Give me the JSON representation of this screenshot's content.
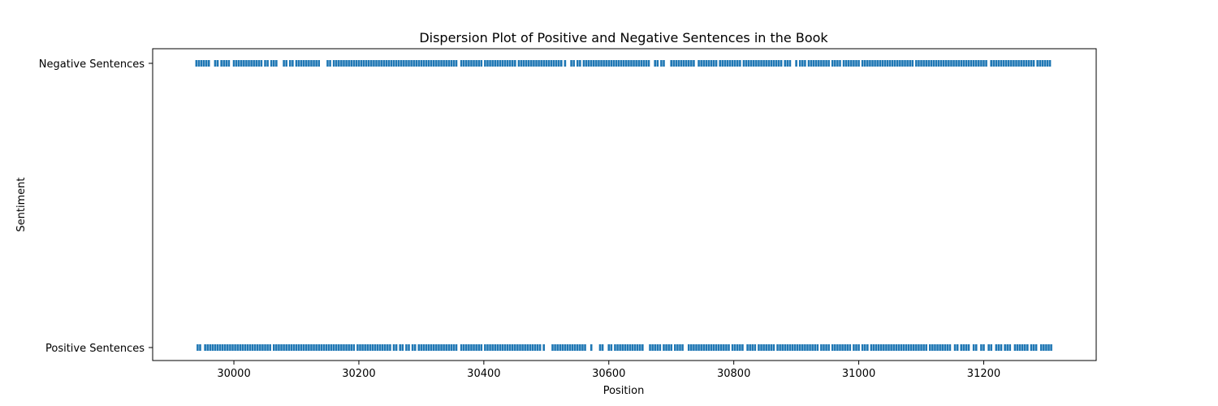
{
  "chart_data": {
    "type": "scatter",
    "title": "Dispersion Plot of Positive and Negative Sentences in the Book",
    "xlabel": "Position",
    "ylabel": "Sentiment",
    "xlim": [
      29870,
      31380
    ],
    "x_ticks": [
      30000,
      30200,
      30400,
      30600,
      30800,
      31000,
      31200
    ],
    "categories": [
      "Positive Sentences",
      "Negative Sentences"
    ],
    "marker": "|",
    "color": "#1f77b4",
    "grid": false,
    "series": [
      {
        "name": "Negative Sentences",
        "x": [
          29940,
          29944,
          29948,
          29952,
          29956,
          29960,
          29970,
          29974,
          29980,
          29984,
          29988,
          29992,
          30000,
          30004,
          30008,
          30012,
          30016,
          30020,
          30024,
          30028,
          30032,
          30036,
          30040,
          30044,
          30050,
          30054,
          30060,
          30064,
          30068,
          30080,
          30084,
          30090,
          30094,
          30100,
          30104,
          30108,
          30112,
          30116,
          30120,
          30124,
          30128,
          30132,
          30136,
          30150,
          30154,
          30160,
          30164,
          30168,
          30172,
          30176,
          30180,
          30184,
          30188,
          30192,
          30196,
          30200,
          30204,
          30208,
          30212,
          30216,
          30220,
          30224,
          30228,
          30232,
          30236,
          30240,
          30244,
          30248,
          30252,
          30256,
          30260,
          30264,
          30268,
          30272,
          30276,
          30280,
          30284,
          30288,
          30292,
          30296,
          30300,
          30304,
          30308,
          30312,
          30316,
          30320,
          30324,
          30328,
          30332,
          30336,
          30340,
          30344,
          30348,
          30352,
          30356,
          30364,
          30368,
          30372,
          30376,
          30380,
          30384,
          30388,
          30392,
          30396,
          30402,
          30406,
          30410,
          30414,
          30418,
          30422,
          30426,
          30430,
          30434,
          30438,
          30442,
          30446,
          30450,
          30456,
          30460,
          30464,
          30468,
          30472,
          30476,
          30480,
          30484,
          30488,
          30492,
          30496,
          30500,
          30504,
          30508,
          30512,
          30516,
          30520,
          30524,
          30530,
          30540,
          30544,
          30550,
          30554,
          30560,
          30564,
          30568,
          30572,
          30576,
          30580,
          30584,
          30588,
          30592,
          30596,
          30600,
          30604,
          30608,
          30612,
          30616,
          30620,
          30624,
          30628,
          30632,
          30636,
          30640,
          30644,
          30648,
          30652,
          30656,
          30660,
          30664,
          30674,
          30678,
          30684,
          30688,
          30700,
          30704,
          30708,
          30712,
          30716,
          30720,
          30724,
          30728,
          30732,
          30736,
          30744,
          30748,
          30752,
          30756,
          30760,
          30764,
          30768,
          30772,
          30778,
          30782,
          30786,
          30790,
          30794,
          30798,
          30802,
          30806,
          30810,
          30816,
          30820,
          30824,
          30828,
          30832,
          30836,
          30840,
          30844,
          30848,
          30852,
          30856,
          30860,
          30864,
          30868,
          30872,
          30876,
          30882,
          30886,
          30890,
          30900,
          30906,
          30910,
          30914,
          30920,
          30924,
          30928,
          30932,
          30936,
          30940,
          30944,
          30948,
          30952,
          30958,
          30962,
          30966,
          30970,
          30976,
          30980,
          30984,
          30988,
          30992,
          30996,
          31000,
          31006,
          31010,
          31014,
          31018,
          31022,
          31026,
          31030,
          31034,
          31038,
          31042,
          31046,
          31050,
          31054,
          31058,
          31062,
          31066,
          31070,
          31074,
          31078,
          31082,
          31086,
          31092,
          31096,
          31100,
          31104,
          31108,
          31112,
          31116,
          31120,
          31124,
          31128,
          31132,
          31136,
          31140,
          31144,
          31148,
          31152,
          31156,
          31160,
          31164,
          31168,
          31172,
          31176,
          31180,
          31184,
          31188,
          31192,
          31196,
          31200,
          31204,
          31212,
          31216,
          31220,
          31224,
          31228,
          31232,
          31236,
          31240,
          31244,
          31248,
          31252,
          31256,
          31260,
          31264,
          31268,
          31272,
          31276,
          31280,
          31286,
          31290,
          31294,
          31298,
          31302,
          31306
        ],
        "y_category": "Negative Sentences"
      },
      {
        "name": "Positive Sentences",
        "x": [
          29942,
          29946,
          29954,
          29958,
          29962,
          29966,
          29970,
          29974,
          29978,
          29982,
          29986,
          29990,
          29994,
          29998,
          30002,
          30006,
          30010,
          30014,
          30018,
          30022,
          30026,
          30030,
          30034,
          30038,
          30042,
          30046,
          30050,
          30054,
          30058,
          30064,
          30068,
          30072,
          30076,
          30080,
          30084,
          30088,
          30092,
          30096,
          30100,
          30104,
          30108,
          30112,
          30116,
          30120,
          30124,
          30128,
          30132,
          30136,
          30140,
          30144,
          30148,
          30152,
          30156,
          30160,
          30164,
          30168,
          30172,
          30176,
          30180,
          30184,
          30188,
          30192,
          30198,
          30202,
          30206,
          30210,
          30214,
          30218,
          30222,
          30226,
          30230,
          30234,
          30238,
          30242,
          30246,
          30250,
          30256,
          30260,
          30266,
          30270,
          30276,
          30280,
          30286,
          30290,
          30296,
          30300,
          30304,
          30308,
          30312,
          30316,
          30320,
          30324,
          30328,
          30332,
          30336,
          30340,
          30344,
          30348,
          30352,
          30356,
          30364,
          30368,
          30372,
          30376,
          30380,
          30384,
          30388,
          30392,
          30396,
          30402,
          30406,
          30410,
          30414,
          30418,
          30422,
          30426,
          30430,
          30434,
          30438,
          30442,
          30446,
          30450,
          30454,
          30458,
          30462,
          30466,
          30470,
          30474,
          30478,
          30482,
          30486,
          30490,
          30496,
          30510,
          30514,
          30518,
          30522,
          30526,
          30530,
          30534,
          30538,
          30542,
          30546,
          30550,
          30554,
          30558,
          30562,
          30572,
          30586,
          30590,
          30600,
          30604,
          30610,
          30614,
          30618,
          30622,
          30626,
          30630,
          30634,
          30638,
          30642,
          30646,
          30650,
          30654,
          30666,
          30670,
          30674,
          30678,
          30682,
          30688,
          30692,
          30696,
          30700,
          30706,
          30710,
          30714,
          30718,
          30728,
          30732,
          30736,
          30740,
          30744,
          30748,
          30752,
          30756,
          30760,
          30764,
          30768,
          30772,
          30776,
          30780,
          30784,
          30788,
          30792,
          30798,
          30802,
          30806,
          30810,
          30814,
          30822,
          30826,
          30830,
          30834,
          30840,
          30844,
          30848,
          30852,
          30856,
          30860,
          30864,
          30870,
          30874,
          30878,
          30882,
          30886,
          30890,
          30894,
          30898,
          30902,
          30906,
          30910,
          30914,
          30918,
          30922,
          30926,
          30930,
          30934,
          30940,
          30944,
          30948,
          30952,
          30958,
          30962,
          30966,
          30970,
          30974,
          30978,
          30982,
          30986,
          30992,
          30996,
          31000,
          31006,
          31010,
          31014,
          31020,
          31024,
          31028,
          31032,
          31036,
          31040,
          31044,
          31048,
          31052,
          31056,
          31060,
          31064,
          31068,
          31072,
          31076,
          31080,
          31084,
          31088,
          31092,
          31096,
          31100,
          31104,
          31108,
          31114,
          31118,
          31122,
          31126,
          31130,
          31134,
          31138,
          31142,
          31146,
          31154,
          31158,
          31164,
          31168,
          31172,
          31176,
          31184,
          31188,
          31196,
          31200,
          31208,
          31212,
          31220,
          31224,
          31228,
          31234,
          31238,
          31242,
          31250,
          31254,
          31258,
          31262,
          31266,
          31270,
          31276,
          31280,
          31284,
          31292,
          31296,
          31300,
          31304,
          31308
        ],
        "y_category": "Positive Sentences"
      }
    ]
  }
}
